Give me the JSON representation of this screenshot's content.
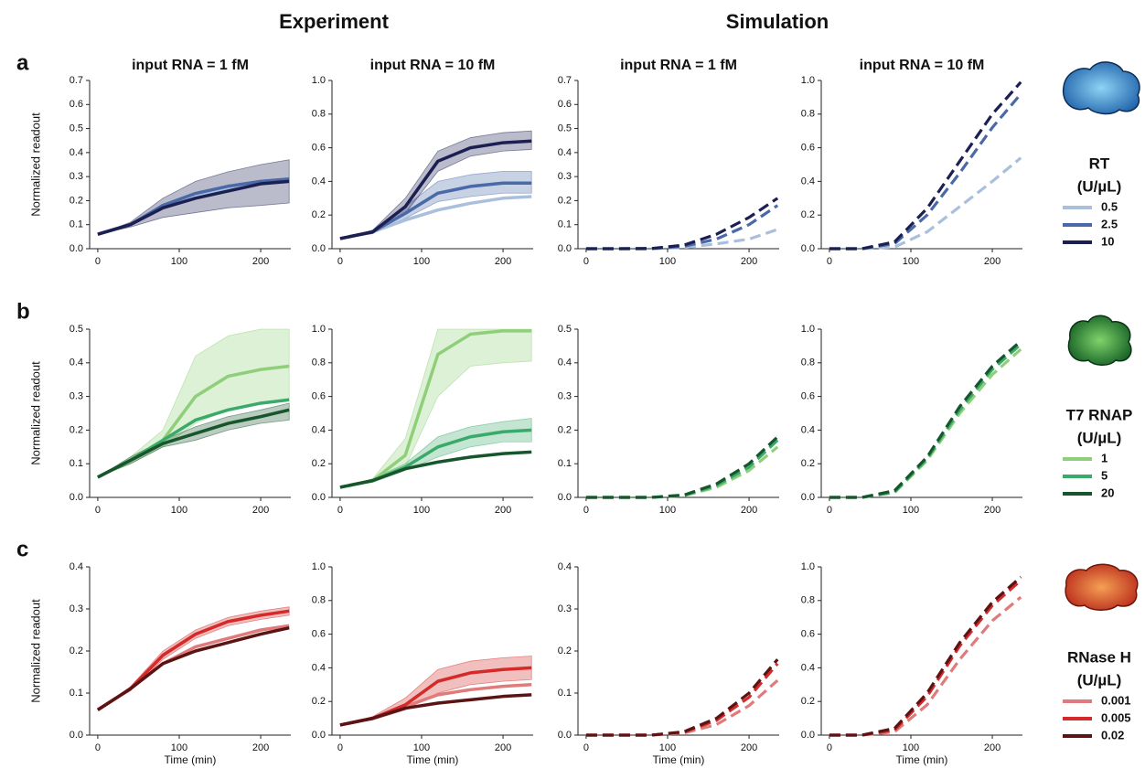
{
  "chart_data": {
    "type": "line",
    "headers": [
      "Experiment",
      "Simulation"
    ],
    "x_label": "Time (min)",
    "y_label": "Normalized readout",
    "x": [
      0,
      40,
      80,
      120,
      160,
      200,
      235
    ],
    "xlim": [
      -10,
      237
    ],
    "xticks": [
      0,
      100,
      200
    ],
    "rows": [
      {
        "panel_label": "a",
        "legend_title": "RT",
        "legend_unit": "(U/µL)",
        "series": [
          {
            "name": "0.5",
            "color": "#a9bfdc"
          },
          {
            "name": "2.5",
            "color": "#4a69a8"
          },
          {
            "name": "10",
            "color": "#1c1f52"
          }
        ],
        "panels": [
          {
            "title": "input RNA = 1 fM",
            "ylim": [
              0,
              0.7
            ],
            "yticks": [
              {
                "value": 0,
                "label": "0.0"
              },
              0.1,
              0.2,
              0.3,
              0.4,
              0.5,
              0.6,
              0.7
            ],
            "dashed": false,
            "series": [
              {
                "values": [
                  0.06,
                  0.1,
                  0.17,
                  0.22,
                  0.25,
                  0.27,
                  0.28
                ]
              },
              {
                "values": [
                  0.06,
                  0.1,
                  0.18,
                  0.23,
                  0.26,
                  0.28,
                  0.29
                ]
              },
              {
                "values": [
                  0.06,
                  0.1,
                  0.17,
                  0.21,
                  0.24,
                  0.27,
                  0.28
                ],
                "lower": [
                  0.06,
                  0.09,
                  0.13,
                  0.15,
                  0.17,
                  0.18,
                  0.19
                ],
                "upper": [
                  0.06,
                  0.11,
                  0.21,
                  0.28,
                  0.32,
                  0.35,
                  0.37
                ]
              }
            ]
          },
          {
            "title": "input RNA = 10 fM",
            "ylim": [
              0,
              1
            ],
            "yticks": [
              {
                "value": 0,
                "label": "0.0"
              },
              0.2,
              0.4,
              0.6,
              0.8,
              {
                "value": 1,
                "label": "1.0"
              }
            ],
            "dashed": false,
            "series": [
              {
                "values": [
                  0.06,
                  0.1,
                  0.17,
                  0.23,
                  0.27,
                  0.3,
                  0.31
                ]
              },
              {
                "values": [
                  0.06,
                  0.1,
                  0.21,
                  0.33,
                  0.37,
                  0.39,
                  0.39
                ],
                "lower": [
                  0.06,
                  0.09,
                  0.18,
                  0.28,
                  0.31,
                  0.33,
                  0.33
                ],
                "upper": [
                  0.06,
                  0.11,
                  0.25,
                  0.4,
                  0.44,
                  0.46,
                  0.46
                ]
              },
              {
                "values": [
                  0.06,
                  0.1,
                  0.25,
                  0.52,
                  0.6,
                  0.63,
                  0.64
                ],
                "lower": [
                  0.06,
                  0.09,
                  0.21,
                  0.46,
                  0.55,
                  0.58,
                  0.59
                ],
                "upper": [
                  0.06,
                  0.11,
                  0.3,
                  0.58,
                  0.66,
                  0.69,
                  0.7
                ]
              }
            ]
          },
          {
            "title": "input RNA = 1 fM",
            "ylim": [
              0,
              0.7
            ],
            "yticks": [
              {
                "value": 0,
                "label": "0.0"
              },
              0.1,
              0.2,
              0.3,
              0.4,
              0.5,
              0.6,
              0.7
            ],
            "dashed": true,
            "series": [
              {
                "values": [
                  0,
                  0,
                  0,
                  0.005,
                  0.02,
                  0.04,
                  0.08
                ]
              },
              {
                "values": [
                  0,
                  0,
                  0,
                  0.01,
                  0.04,
                  0.1,
                  0.18
                ]
              },
              {
                "values": [
                  0,
                  0,
                  0.001,
                  0.015,
                  0.06,
                  0.13,
                  0.21
                ]
              }
            ]
          },
          {
            "title": "input RNA = 10 fM",
            "ylim": [
              0,
              1
            ],
            "yticks": [
              {
                "value": 0,
                "label": "0.0"
              },
              0.2,
              0.4,
              0.6,
              0.8,
              {
                "value": 1,
                "label": "1.0"
              }
            ],
            "dashed": true,
            "series": [
              {
                "values": [
                  0,
                  0,
                  0.01,
                  0.1,
                  0.25,
                  0.4,
                  0.54
                ]
              },
              {
                "values": [
                  0,
                  0,
                  0.03,
                  0.2,
                  0.45,
                  0.72,
                  0.92
                ]
              },
              {
                "values": [
                  0,
                  0,
                  0.04,
                  0.24,
                  0.52,
                  0.8,
                  0.99
                ]
              }
            ]
          }
        ]
      },
      {
        "panel_label": "b",
        "legend_title": "T7 RNAP",
        "legend_unit": "(U/µL)",
        "series": [
          {
            "name": "1",
            "color": "#8fcf7a"
          },
          {
            "name": "5",
            "color": "#3aaa6a"
          },
          {
            "name": "20",
            "color": "#17552c"
          }
        ],
        "panels": [
          {
            "ylim": [
              0,
              0.5
            ],
            "yticks": [
              {
                "value": 0,
                "label": "0.0"
              },
              0.1,
              0.2,
              0.3,
              0.4,
              0.5
            ],
            "dashed": false,
            "series": [
              {
                "values": [
                  0.06,
                  0.11,
                  0.17,
                  0.3,
                  0.36,
                  0.38,
                  0.39
                ],
                "lower": [
                  0.06,
                  0.1,
                  0.15,
                  0.22,
                  0.26,
                  0.28,
                  0.29
                ],
                "upper": [
                  0.06,
                  0.12,
                  0.2,
                  0.42,
                  0.48,
                  0.5,
                  0.5
                ]
              },
              {
                "values": [
                  0.06,
                  0.11,
                  0.17,
                  0.23,
                  0.26,
                  0.28,
                  0.29
                ]
              },
              {
                "values": [
                  0.06,
                  0.11,
                  0.16,
                  0.19,
                  0.22,
                  0.24,
                  0.26
                ],
                "lower": [
                  0.06,
                  0.1,
                  0.15,
                  0.17,
                  0.2,
                  0.22,
                  0.23
                ],
                "upper": [
                  0.06,
                  0.12,
                  0.17,
                  0.21,
                  0.24,
                  0.26,
                  0.28
                ]
              }
            ]
          },
          {
            "ylim": [
              0,
              1
            ],
            "yticks": [
              {
                "value": 0,
                "label": "0.0"
              },
              0.2,
              0.4,
              0.6,
              0.8,
              {
                "value": 1,
                "label": "1.0"
              }
            ],
            "dashed": false,
            "series": [
              {
                "values": [
                  0.06,
                  0.1,
                  0.25,
                  0.85,
                  0.97,
                  0.99,
                  0.99
                ],
                "lower": [
                  0.06,
                  0.09,
                  0.18,
                  0.6,
                  0.78,
                  0.8,
                  0.81
                ],
                "upper": [
                  0.06,
                  0.11,
                  0.35,
                  1,
                  1,
                  1,
                  1
                ]
              },
              {
                "values": [
                  0.06,
                  0.1,
                  0.18,
                  0.3,
                  0.36,
                  0.39,
                  0.4
                ],
                "lower": [
                  0.06,
                  0.09,
                  0.16,
                  0.24,
                  0.3,
                  0.33,
                  0.33
                ],
                "upper": [
                  0.06,
                  0.11,
                  0.2,
                  0.36,
                  0.42,
                  0.45,
                  0.47
                ]
              },
              {
                "values": [
                  0.06,
                  0.1,
                  0.17,
                  0.21,
                  0.24,
                  0.26,
                  0.27
                ]
              }
            ]
          },
          {
            "ylim": [
              0,
              0.5
            ],
            "yticks": [
              {
                "value": 0,
                "label": "0.0"
              },
              0.1,
              0.2,
              0.3,
              0.4,
              0.5
            ],
            "dashed": true,
            "series": [
              {
                "values": [
                  0,
                  0,
                  0,
                  0.005,
                  0.03,
                  0.08,
                  0.15
                ]
              },
              {
                "values": [
                  0,
                  0,
                  0,
                  0.006,
                  0.035,
                  0.09,
                  0.17
                ]
              },
              {
                "values": [
                  0,
                  0,
                  0,
                  0.007,
                  0.04,
                  0.1,
                  0.18
                ]
              }
            ]
          },
          {
            "ylim": [
              0,
              1
            ],
            "yticks": [
              {
                "value": 0,
                "label": "0.0"
              },
              0.2,
              0.4,
              0.6,
              0.8,
              {
                "value": 1,
                "label": "1.0"
              }
            ],
            "dashed": true,
            "series": [
              {
                "values": [
                  0,
                  0,
                  0.03,
                  0.22,
                  0.5,
                  0.73,
                  0.88
                ]
              },
              {
                "values": [
                  0,
                  0,
                  0.03,
                  0.23,
                  0.52,
                  0.76,
                  0.91
                ]
              },
              {
                "values": [
                  0,
                  0,
                  0.04,
                  0.24,
                  0.54,
                  0.78,
                  0.93
                ]
              }
            ]
          }
        ]
      },
      {
        "panel_label": "c",
        "legend_title": "RNase H",
        "legend_unit": "(U/µL)",
        "series": [
          {
            "name": "0.001",
            "color": "#e07b7b"
          },
          {
            "name": "0.005",
            "color": "#d42a2a"
          },
          {
            "name": "0.02",
            "color": "#5a1414"
          }
        ],
        "panels": [
          {
            "ylim": [
              0,
              0.4
            ],
            "yticks": [
              {
                "value": 0,
                "label": "0.0"
              },
              0.1,
              0.2,
              0.3,
              0.4
            ],
            "dashed": false,
            "series": [
              {
                "values": [
                  0.06,
                  0.11,
                  0.17,
                  0.21,
                  0.23,
                  0.25,
                  0.26
                ]
              },
              {
                "values": [
                  0.06,
                  0.11,
                  0.19,
                  0.24,
                  0.27,
                  0.285,
                  0.295
                ],
                "lower": [
                  0.06,
                  0.105,
                  0.18,
                  0.23,
                  0.26,
                  0.275,
                  0.285
                ],
                "upper": [
                  0.06,
                  0.115,
                  0.2,
                  0.25,
                  0.28,
                  0.295,
                  0.305
                ]
              },
              {
                "values": [
                  0.06,
                  0.11,
                  0.17,
                  0.2,
                  0.22,
                  0.24,
                  0.255
                ]
              }
            ]
          },
          {
            "ylim": [
              0,
              1
            ],
            "yticks": [
              {
                "value": 0,
                "label": "0.0"
              },
              0.2,
              0.4,
              0.6,
              0.8,
              {
                "value": 1,
                "label": "1.0"
              }
            ],
            "dashed": false,
            "series": [
              {
                "values": [
                  0.06,
                  0.1,
                  0.17,
                  0.24,
                  0.27,
                  0.29,
                  0.3
                ]
              },
              {
                "values": [
                  0.06,
                  0.1,
                  0.18,
                  0.32,
                  0.37,
                  0.39,
                  0.4
                ],
                "lower": [
                  0.06,
                  0.09,
                  0.15,
                  0.25,
                  0.3,
                  0.32,
                  0.33
                ],
                "upper": [
                  0.06,
                  0.11,
                  0.22,
                  0.39,
                  0.44,
                  0.46,
                  0.47
                ]
              },
              {
                "values": [
                  0.06,
                  0.1,
                  0.16,
                  0.19,
                  0.21,
                  0.23,
                  0.24
                ]
              }
            ]
          },
          {
            "ylim": [
              0,
              0.4
            ],
            "yticks": [
              {
                "value": 0,
                "label": "0.0"
              },
              0.1,
              0.2,
              0.3,
              0.4
            ],
            "dashed": true,
            "series": [
              {
                "values": [
                  0,
                  0,
                  0,
                  0.005,
                  0.025,
                  0.07,
                  0.13
                ]
              },
              {
                "values": [
                  0,
                  0,
                  0,
                  0.007,
                  0.035,
                  0.09,
                  0.17
                ]
              },
              {
                "values": [
                  0,
                  0,
                  0,
                  0.008,
                  0.04,
                  0.1,
                  0.18
                ]
              }
            ]
          },
          {
            "ylim": [
              0,
              1
            ],
            "yticks": [
              {
                "value": 0,
                "label": "0.0"
              },
              0.2,
              0.4,
              0.6,
              0.8,
              {
                "value": 1,
                "label": "1.0"
              }
            ],
            "dashed": true,
            "series": [
              {
                "values": [
                  0,
                  0,
                  0.02,
                  0.18,
                  0.45,
                  0.68,
                  0.82
                ]
              },
              {
                "values": [
                  0,
                  0,
                  0.03,
                  0.23,
                  0.53,
                  0.77,
                  0.92
                ]
              },
              {
                "values": [
                  0,
                  0,
                  0.04,
                  0.25,
                  0.55,
                  0.79,
                  0.94
                ]
              }
            ]
          }
        ]
      }
    ]
  }
}
